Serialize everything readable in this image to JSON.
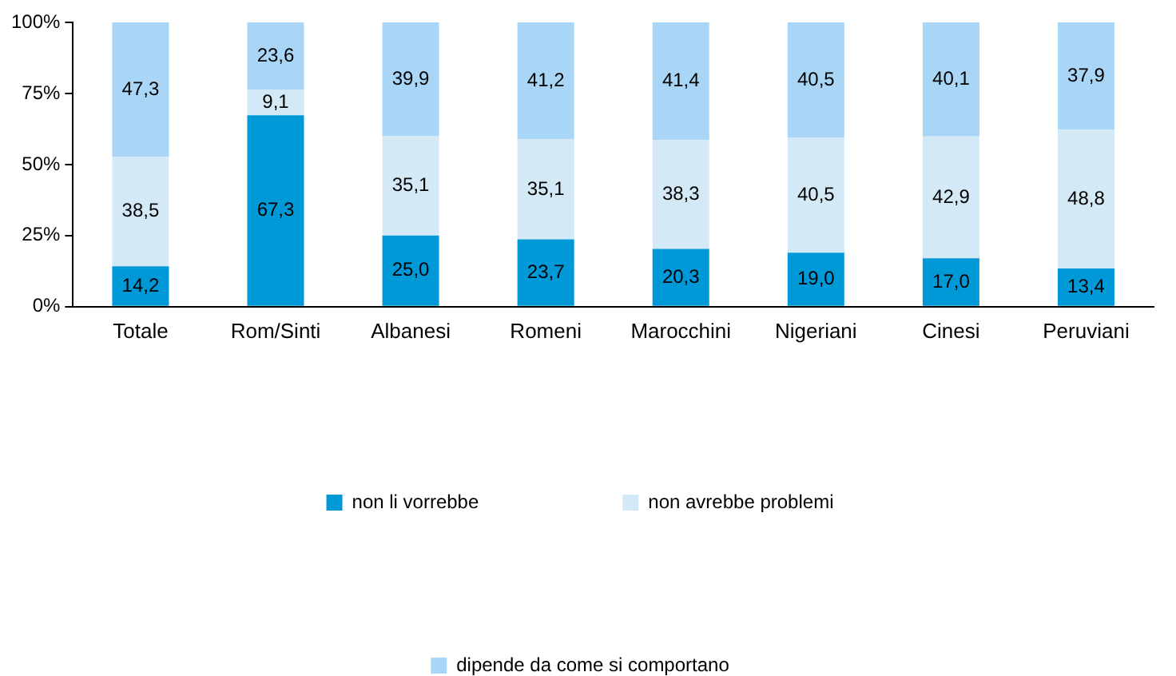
{
  "chart_data": {
    "type": "bar",
    "stacked": true,
    "categories": [
      "Totale",
      "Rom/Sinti",
      "Albanesi",
      "Romeni",
      "Marocchini",
      "Nigeriani",
      "Cinesi",
      "Peruviani"
    ],
    "series": [
      {
        "name": "non li vorrebbe",
        "color": "#0099d8",
        "values": [
          14.2,
          67.3,
          25.0,
          23.7,
          20.3,
          19.0,
          17.0,
          13.4
        ],
        "value_labels": [
          "14,2",
          "67,3",
          "25,0",
          "23,7",
          "20,3",
          "19,0",
          "17,0",
          "13,4"
        ]
      },
      {
        "name": "non avrebbe problemi",
        "color": "#d3eaf6",
        "values": [
          38.5,
          9.1,
          35.1,
          35.1,
          38.3,
          40.5,
          42.9,
          48.8
        ],
        "value_labels": [
          "38,5",
          "9,1",
          "35,1",
          "35,1",
          "38,3",
          "40,5",
          "42,9",
          "48,8"
        ]
      },
      {
        "name": "dipende da come si comportano",
        "color": "#a9d6f7",
        "values": [
          47.3,
          23.6,
          39.9,
          41.2,
          41.4,
          40.5,
          40.1,
          37.9
        ],
        "value_labels": [
          "47,3",
          "23,6",
          "39,9",
          "41,2",
          "41,4",
          "40,5",
          "40,1",
          "37,9"
        ]
      }
    ],
    "ylim": [
      0,
      100
    ],
    "yticks": [
      {
        "value": 0,
        "label": "0%"
      },
      {
        "value": 25,
        "label": "25%"
      },
      {
        "value": 50,
        "label": "50%"
      },
      {
        "value": 75,
        "label": "75%"
      },
      {
        "value": 100,
        "label": "100%"
      }
    ],
    "grid": false,
    "legend": "bottom"
  }
}
